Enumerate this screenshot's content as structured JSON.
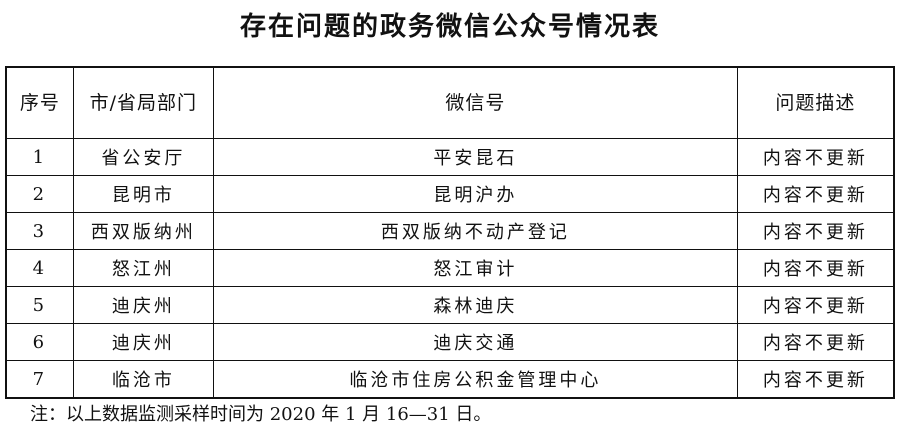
{
  "title": "存在问题的政务微信公众号情况表",
  "table": {
    "headers": [
      "序号",
      "市/省局部门",
      "微信号",
      "问题描述"
    ],
    "rows": [
      [
        "1",
        "省公安厅",
        "平安昆石",
        "内容不更新"
      ],
      [
        "2",
        "昆明市",
        "昆明沪办",
        "内容不更新"
      ],
      [
        "3",
        "西双版纳州",
        "西双版纳不动产登记",
        "内容不更新"
      ],
      [
        "4",
        "怒江州",
        "怒江审计",
        "内容不更新"
      ],
      [
        "5",
        "迪庆州",
        "森林迪庆",
        "内容不更新"
      ],
      [
        "6",
        "迪庆州",
        "迪庆交通",
        "内容不更新"
      ],
      [
        "7",
        "临沧市",
        "临沧市住房公积金管理中心",
        "内容不更新"
      ]
    ]
  },
  "note": "注：以上数据监测采样时间为 2020 年 1 月 16—31 日。"
}
